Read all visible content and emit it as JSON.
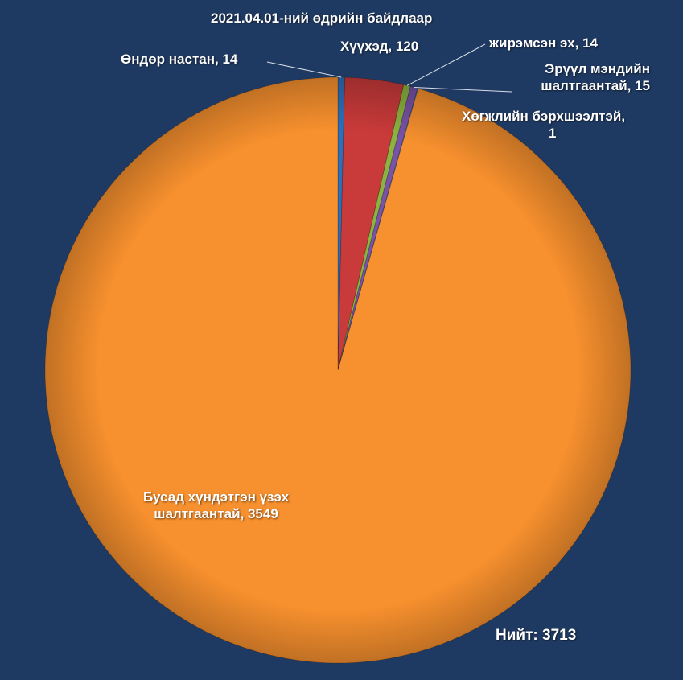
{
  "title": "2021.04.01-ний өдрийн байдлаар",
  "total": {
    "label": "Нийт:",
    "value": "3713"
  },
  "colors": {
    "background": "#1f3a62",
    "elderly": "#2e6fb8",
    "children": "#c93a3a",
    "single_mother": "#8cb33f",
    "health": "#7a52a8",
    "disabled": "#34b4c8",
    "other": "#f7902e"
  },
  "chart_data": {
    "type": "pie",
    "title": "2021.04.01-ний өдрийн байдлаар",
    "total": 3713,
    "slices": [
      {
        "key": "elderly",
        "label_lines": [
          "Өндөр настан, 14"
        ],
        "value": 14
      },
      {
        "key": "children",
        "label_lines": [
          "Хүүхэд, 120"
        ],
        "value": 120
      },
      {
        "key": "single_mother",
        "label_lines": [
          "жирэмсэн эх, 14"
        ],
        "value": 14
      },
      {
        "key": "health",
        "label_lines": [
          "Эрүүл мэндийн",
          "шалтгаантай, 15"
        ],
        "value": 15
      },
      {
        "key": "disabled",
        "label_lines": [
          "Хөгжлийн бэрхшээлтэй,",
          "1"
        ],
        "value": 1
      },
      {
        "key": "other",
        "label_lines": [
          "Бусад хүндэтгэн үзэх",
          "шалтгаантай, 3549"
        ],
        "value": 3549
      }
    ]
  }
}
